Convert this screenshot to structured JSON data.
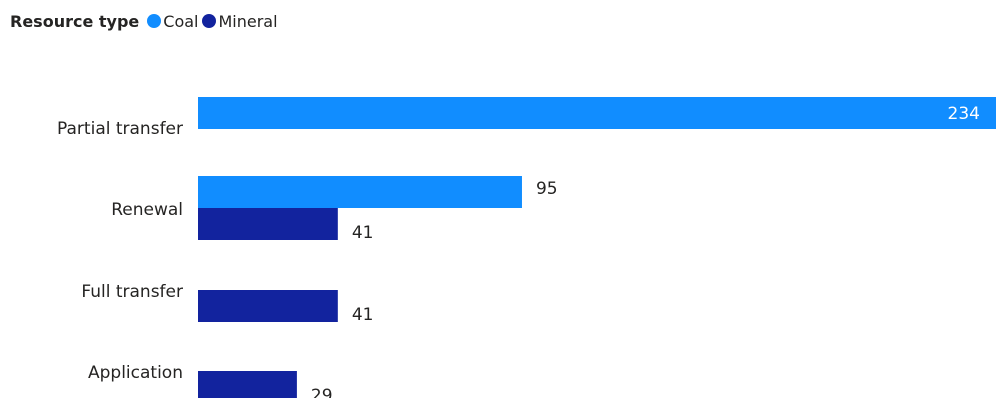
{
  "legend": {
    "title": "Resource type",
    "items": [
      {
        "name": "Coal",
        "color": "#118DFF"
      },
      {
        "name": "Mineral",
        "color": "#12239E"
      }
    ]
  },
  "chart_data": {
    "type": "bar",
    "orientation": "horizontal",
    "categories": [
      "Partial transfer",
      "Renewal",
      "Full transfer",
      "Application"
    ],
    "series": [
      {
        "name": "Coal",
        "color": "#118DFF",
        "values": [
          234,
          95,
          null,
          null
        ]
      },
      {
        "name": "Mineral",
        "color": "#12239E",
        "values": [
          null,
          41,
          41,
          29
        ]
      }
    ],
    "xlim": [
      0,
      234
    ],
    "legend_position": "top-left",
    "grid": false,
    "data_labels": true
  }
}
